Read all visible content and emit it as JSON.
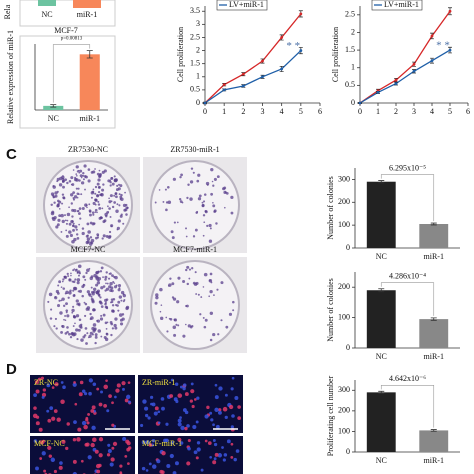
{
  "top_left_panel": {
    "ylabel": "Rela",
    "categories": [
      "NC",
      "miR-1"
    ],
    "caption": "MCF-7"
  },
  "panel_labels": [
    "C",
    "D"
  ],
  "plates": [
    "ZR7530-NC",
    "ZR7530-miR-1",
    "MCF7-NC",
    "MCF7-miR-1"
  ],
  "fluorescence": [
    "ZR-NC",
    "ZR-miR-1",
    "MCF-NC",
    "MCF-miR-1"
  ],
  "chart_data": [
    {
      "type": "bar",
      "ylabel": "Relative expression of miR-1",
      "categories": [
        "NC",
        "miR-1"
      ],
      "values": [
        1,
        13.5
      ],
      "errors": [
        0.3,
        0.9
      ],
      "colors": [
        "#6cc3a0",
        "#f7875a"
      ],
      "annotation": "p=0.00813",
      "ylim": [
        0,
        16
      ]
    },
    {
      "type": "line",
      "ylabel": "Cell proliferation",
      "x": [
        0,
        1,
        2,
        3,
        4,
        5
      ],
      "series": [
        {
          "color": "#d62728",
          "values": [
            0,
            0.7,
            1.1,
            1.6,
            2.5,
            3.4
          ],
          "errors": [
            0.03,
            0.05,
            0.06,
            0.08,
            0.1,
            0.12
          ]
        },
        {
          "name": "LV+miR-1",
          "color": "#1f5fa8",
          "values": [
            0,
            0.5,
            0.65,
            1.0,
            1.3,
            2.0
          ],
          "errors": [
            0.03,
            0.04,
            0.05,
            0.06,
            0.1,
            0.12
          ]
        }
      ],
      "annotation": "* *",
      "xlim": [
        0,
        6
      ],
      "xticks": [
        0,
        1,
        2,
        3,
        4,
        5,
        6
      ],
      "ylim": [
        0,
        3.7
      ],
      "yticks": [
        0,
        0.5,
        1,
        1.5,
        2,
        2.5,
        3,
        3.5
      ]
    },
    {
      "type": "line",
      "ylabel": "Cell proliferation",
      "x": [
        0,
        1,
        2,
        3,
        4,
        5
      ],
      "series": [
        {
          "color": "#d62728",
          "values": [
            0,
            0.35,
            0.65,
            1.1,
            1.9,
            2.6
          ],
          "errors": [
            0.02,
            0.04,
            0.05,
            0.06,
            0.08,
            0.1
          ]
        },
        {
          "name": "LV+miR-1",
          "color": "#1f5fa8",
          "values": [
            0,
            0.3,
            0.55,
            0.9,
            1.2,
            1.5
          ],
          "errors": [
            0.02,
            0.03,
            0.04,
            0.05,
            0.07,
            0.08
          ]
        }
      ],
      "annotation": "* *",
      "xlim": [
        0,
        6
      ],
      "xticks": [
        0,
        1,
        2,
        3,
        4,
        5,
        6
      ],
      "ylim": [
        0,
        2.75
      ],
      "yticks": [
        0,
        0.5,
        1,
        1.5,
        2,
        2.5
      ]
    },
    {
      "type": "bar",
      "ylabel": "Number of colonies",
      "categories": [
        "NC",
        "miR-1"
      ],
      "values": [
        290,
        105
      ],
      "errors": [
        5,
        4
      ],
      "colors": [
        "#222222",
        "#888888"
      ],
      "annotation": "6.295x10⁻⁵",
      "ylim": [
        0,
        350
      ],
      "yticks": [
        0,
        100,
        200,
        300
      ]
    },
    {
      "type": "bar",
      "ylabel": "Number of colonies",
      "categories": [
        "NC",
        "miR-1"
      ],
      "values": [
        190,
        95
      ],
      "errors": [
        5,
        4
      ],
      "colors": [
        "#222222",
        "#888888"
      ],
      "annotation": "4.286x10⁻⁴",
      "ylim": [
        0,
        250
      ],
      "yticks": [
        0,
        100,
        200
      ]
    },
    {
      "type": "bar",
      "ylabel": "Proliferating cell number",
      "categories": [
        "NC",
        "miR-1"
      ],
      "values": [
        290,
        105
      ],
      "errors": [
        5,
        4
      ],
      "colors": [
        "#222222",
        "#888888"
      ],
      "annotation": "4.642x10⁻⁶",
      "ylim": [
        0,
        350
      ],
      "yticks": [
        0,
        100,
        200,
        300
      ]
    }
  ]
}
